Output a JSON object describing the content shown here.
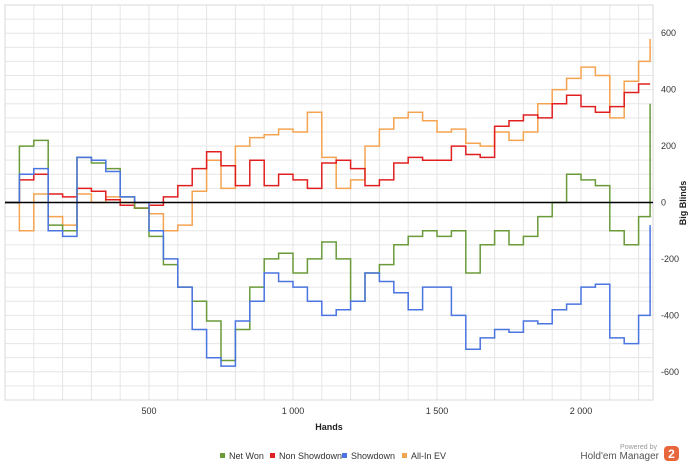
{
  "chart_data": {
    "type": "line",
    "title": "",
    "xlabel": "Hands",
    "ylabel": "Big Blinds",
    "xlim": [
      0,
      2250
    ],
    "ylim": [
      -700,
      700
    ],
    "x_ticks": [
      500,
      1000,
      1500,
      2000
    ],
    "x_tick_labels": [
      "500",
      "1 000",
      "1 500",
      "2 000"
    ],
    "y_ticks": [
      -600,
      -400,
      -200,
      0,
      200,
      400,
      600
    ],
    "y_tick_labels": [
      "-600",
      "-400",
      "-200",
      "0",
      "200",
      "400",
      "600"
    ],
    "grid": true,
    "legend_position": "bottom-center",
    "x": [
      0,
      50,
      100,
      150,
      200,
      250,
      300,
      350,
      400,
      450,
      500,
      550,
      600,
      650,
      700,
      750,
      800,
      850,
      900,
      950,
      1000,
      1050,
      1100,
      1150,
      1200,
      1250,
      1300,
      1350,
      1400,
      1450,
      1500,
      1550,
      1600,
      1650,
      1700,
      1750,
      1800,
      1850,
      1900,
      1950,
      2000,
      2050,
      2100,
      2150,
      2200,
      2240
    ],
    "series": [
      {
        "name": "Net Won",
        "color": "#6a9a3a",
        "values": [
          0,
          200,
          220,
          -80,
          -100,
          160,
          140,
          120,
          20,
          -20,
          -120,
          -220,
          -300,
          -350,
          -420,
          -560,
          -450,
          -300,
          -200,
          -180,
          -250,
          -200,
          -140,
          -200,
          -350,
          -250,
          -220,
          -150,
          -120,
          -100,
          -120,
          -100,
          -250,
          -150,
          -100,
          -150,
          -120,
          -50,
          0,
          100,
          80,
          60,
          -100,
          -150,
          -50,
          350
        ]
      },
      {
        "name": "Non Showdown",
        "color": "#e02020",
        "values": [
          0,
          80,
          100,
          30,
          20,
          50,
          40,
          10,
          -10,
          -20,
          -10,
          20,
          60,
          120,
          180,
          130,
          60,
          150,
          60,
          100,
          80,
          50,
          140,
          150,
          120,
          60,
          80,
          140,
          160,
          150,
          150,
          200,
          170,
          160,
          270,
          290,
          310,
          300,
          350,
          380,
          340,
          320,
          340,
          390,
          420,
          420
        ]
      },
      {
        "name": "Showdown",
        "color": "#4a74e0",
        "values": [
          0,
          100,
          120,
          -100,
          -120,
          160,
          150,
          110,
          20,
          0,
          -100,
          -200,
          -300,
          -450,
          -550,
          -580,
          -420,
          -350,
          -250,
          -280,
          -300,
          -350,
          -400,
          -380,
          -350,
          -250,
          -280,
          -320,
          -380,
          -300,
          -300,
          -400,
          -520,
          -480,
          -450,
          -460,
          -420,
          -430,
          -380,
          -360,
          -300,
          -290,
          -480,
          -500,
          -400,
          -80
        ]
      },
      {
        "name": "All-In EV",
        "color": "#f4a350",
        "values": [
          0,
          -100,
          30,
          -50,
          -80,
          30,
          0,
          20,
          0,
          -20,
          -40,
          -100,
          -80,
          40,
          150,
          50,
          200,
          230,
          240,
          260,
          250,
          320,
          160,
          50,
          80,
          200,
          260,
          300,
          320,
          290,
          250,
          260,
          210,
          200,
          250,
          220,
          250,
          350,
          400,
          440,
          480,
          450,
          300,
          430,
          500,
          580
        ]
      }
    ]
  },
  "brand": {
    "powered_by": "Powered by",
    "name": "Hold'em Manager",
    "badge": "2",
    "badge_color": "#e8663b"
  }
}
